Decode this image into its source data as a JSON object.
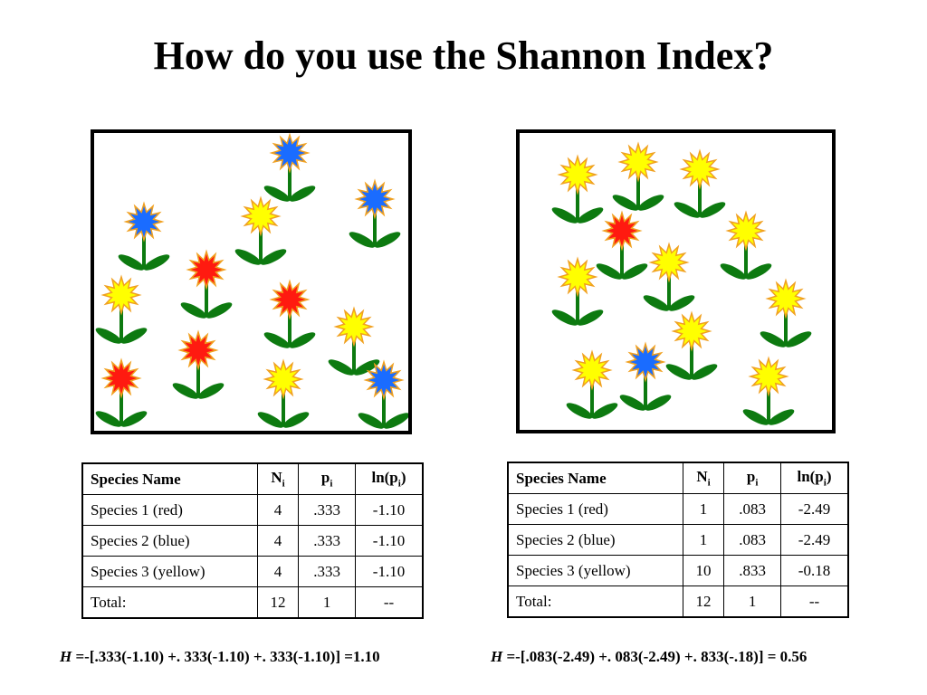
{
  "title": "How do you use the Shannon Index?",
  "colors": {
    "red": "#ff1a10",
    "blue": "#1a6cff",
    "yellow": "#ffff00",
    "outline": "#f0a020",
    "stem": "#0d7a10"
  },
  "panels": [
    {
      "flowers": [
        {
          "color": "blue"
        },
        {
          "color": "blue"
        },
        {
          "color": "blue"
        },
        {
          "color": "yellow"
        },
        {
          "color": "red"
        },
        {
          "color": "yellow"
        },
        {
          "color": "red"
        },
        {
          "color": "yellow"
        },
        {
          "color": "red"
        },
        {
          "color": "red"
        },
        {
          "color": "yellow"
        },
        {
          "color": "blue"
        }
      ]
    },
    {
      "flowers": [
        {
          "color": "yellow"
        },
        {
          "color": "yellow"
        },
        {
          "color": "yellow"
        },
        {
          "color": "red"
        },
        {
          "color": "yellow"
        },
        {
          "color": "yellow"
        },
        {
          "color": "yellow"
        },
        {
          "color": "yellow"
        },
        {
          "color": "yellow"
        },
        {
          "color": "yellow"
        },
        {
          "color": "blue"
        },
        {
          "color": "yellow"
        }
      ]
    }
  ],
  "tables": [
    {
      "header": {
        "name": "Species Name",
        "n_base": "N",
        "n_sub": "i",
        "p_base": "p",
        "p_sub": "i",
        "ln_pre": "ln(p",
        "ln_sub": "i",
        "ln_post": ")"
      },
      "rows": [
        {
          "name": "Species 1 (red)",
          "n": "4",
          "p": ".333",
          "ln": "-1.10"
        },
        {
          "name": "Species 2 (blue)",
          "n": "4",
          "p": ".333",
          "ln": "-1.10"
        },
        {
          "name": "Species 3 (yellow)",
          "n": "4",
          "p": ".333",
          "ln": "-1.10"
        },
        {
          "name": "Total:",
          "n": "12",
          "p": "1",
          "ln": "--"
        }
      ]
    },
    {
      "header": {
        "name": "Species Name",
        "n_base": "N",
        "n_sub": "i",
        "p_base": "p",
        "p_sub": "i",
        "ln_pre": "ln(p",
        "ln_sub": "i",
        "ln_post": ")"
      },
      "rows": [
        {
          "name": "Species 1 (red)",
          "n": "1",
          "p": ".083",
          "ln": "-2.49"
        },
        {
          "name": "Species 2 (blue)",
          "n": "1",
          "p": ".083",
          "ln": "-2.49"
        },
        {
          "name": "Species 3 (yellow)",
          "n": "10",
          "p": ".833",
          "ln": "-0.18"
        },
        {
          "name": "Total:",
          "n": "12",
          "p": "1",
          "ln": "--"
        }
      ]
    }
  ],
  "formulas": [
    {
      "var": "H",
      "expr": " =-[.333(-1.10) +. 333(-1.10) +. 333(-1.10)] =1.10"
    },
    {
      "var": "H",
      "expr": " =-[.083(-2.49) +. 083(-2.49) +. 833(-.18)] = 0.56"
    }
  ]
}
